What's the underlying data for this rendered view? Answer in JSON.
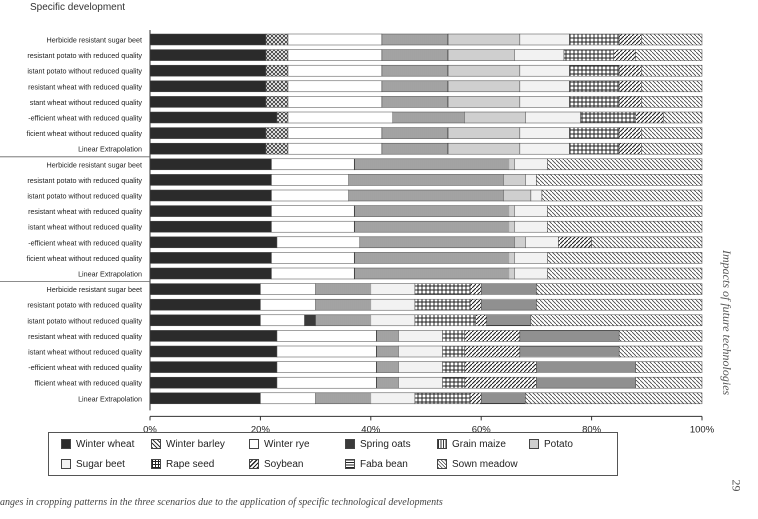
{
  "header": {
    "title": "Specific development"
  },
  "side_label": "Impacts of future technologies",
  "page_number": "29",
  "caption": "anges in cropping patterns in the three scenarios due to the application of specific technological developments",
  "colors": {
    "Winter wheat": "#2b2b2b",
    "Winter barley": "#9a9a9a",
    "Winter rye": "#ffffff",
    "Spring oats": "#3a3a3a",
    "Grain maize": "#8a8a8a",
    "Potato": "#cfcfcf",
    "Sugar beet": "#f2f2f2",
    "Rape seed": "#6e6e6e",
    "Soybean": "#7a7a7a",
    "Faba bean": "#505050",
    "Sown meadow": "#bdbdbd"
  },
  "chart_data": {
    "type": "bar",
    "orientation": "horizontal",
    "stacked": true,
    "xlim": [
      0,
      100
    ],
    "xticks": [
      "0%",
      "20%",
      "40%",
      "60%",
      "80%",
      "100%"
    ],
    "grid": false,
    "legend_position": "bottom",
    "legend": [
      "Winter wheat",
      "Winter barley",
      "Winter rye",
      "Spring oats",
      "Grain maize",
      "Potato",
      "Sugar beet",
      "Rape seed",
      "Soybean",
      "Faba bean",
      "Sown meadow"
    ],
    "categories": [
      "Herbicide resistant sugar beet",
      "resistant potato with reduced quality",
      "istant potato without reduced quality",
      "resistant wheat with reduced quality",
      "stant wheat without reduced quality",
      "-efficient wheat with reduced quality",
      "ficient wheat without reduced quality",
      "Linear Extrapolation",
      "Herbicide resistant sugar beet",
      "resistant potato with reduced quality",
      "istant potato without reduced quality",
      "resistant wheat with reduced quality",
      "istant wheat without reduced quality",
      "-efficient wheat with reduced quality",
      "ficient wheat without reduced quality",
      "Linear Extrapolation",
      "Herbicide resistant sugar beet",
      "resistant potato with reduced quality",
      "istant potato without reduced quality",
      "resistant wheat with reduced quality",
      "istant wheat without reduced quality",
      "-efficient wheat with reduced quality",
      "fficient wheat with reduced quality",
      "Linear Extrapolation"
    ],
    "series": [
      {
        "name": "Winter wheat",
        "values": [
          21,
          21,
          21,
          21,
          21,
          23,
          21,
          21,
          22,
          22,
          22,
          22,
          22,
          23,
          22,
          22,
          20,
          20,
          20,
          23,
          23,
          23,
          23,
          20
        ]
      },
      {
        "name": "Winter barley",
        "values": [
          4,
          4,
          4,
          4,
          4,
          2,
          4,
          4,
          0,
          0,
          0,
          0,
          0,
          0,
          0,
          0,
          0,
          0,
          0,
          0,
          0,
          0,
          0,
          0
        ]
      },
      {
        "name": "Winter rye",
        "values": [
          17,
          17,
          17,
          17,
          17,
          19,
          17,
          17,
          15,
          14,
          14,
          15,
          15,
          15,
          15,
          15,
          10,
          10,
          8,
          18,
          18,
          18,
          18,
          10
        ]
      },
      {
        "name": "Spring oats",
        "values": [
          0,
          0,
          0,
          0,
          0,
          0,
          0,
          0,
          0,
          0,
          0,
          0,
          0,
          0,
          0,
          0,
          0,
          0,
          2,
          0,
          0,
          0,
          0,
          0
        ]
      },
      {
        "name": "Grain maize",
        "values": [
          12,
          12,
          12,
          12,
          12,
          13,
          12,
          12,
          28,
          28,
          28,
          28,
          28,
          28,
          28,
          28,
          10,
          10,
          10,
          4,
          4,
          4,
          4,
          10
        ]
      },
      {
        "name": "Potato",
        "values": [
          13,
          12,
          13,
          13,
          13,
          11,
          13,
          13,
          1,
          4,
          5,
          1,
          1,
          2,
          1,
          1,
          0,
          0,
          0,
          0,
          0,
          0,
          0,
          0
        ]
      },
      {
        "name": "Sugar beet",
        "values": [
          9,
          9,
          9,
          9,
          9,
          10,
          9,
          9,
          6,
          2,
          2,
          6,
          6,
          6,
          6,
          6,
          8,
          8,
          8,
          8,
          8,
          8,
          8,
          8
        ]
      },
      {
        "name": "Rape seed",
        "values": [
          9,
          9,
          9,
          9,
          9,
          10,
          9,
          9,
          0,
          0,
          0,
          0,
          0,
          0,
          0,
          0,
          10,
          10,
          11,
          4,
          4,
          4,
          4,
          10
        ]
      },
      {
        "name": "Soybean",
        "values": [
          4,
          4,
          4,
          4,
          4,
          5,
          4,
          4,
          0,
          0,
          0,
          0,
          0,
          6,
          0,
          0,
          2,
          2,
          2,
          10,
          10,
          13,
          13,
          2
        ]
      },
      {
        "name": "Faba bean",
        "values": [
          0,
          0,
          0,
          0,
          0,
          0,
          0,
          0,
          0,
          0,
          0,
          0,
          0,
          0,
          0,
          0,
          10,
          10,
          8,
          18,
          18,
          18,
          18,
          8
        ]
      },
      {
        "name": "Sown meadow",
        "values": [
          11,
          12,
          11,
          11,
          11,
          7,
          11,
          11,
          28,
          30,
          29,
          28,
          28,
          20,
          28,
          28,
          30,
          30,
          31,
          15,
          15,
          12,
          12,
          32
        ]
      }
    ]
  }
}
